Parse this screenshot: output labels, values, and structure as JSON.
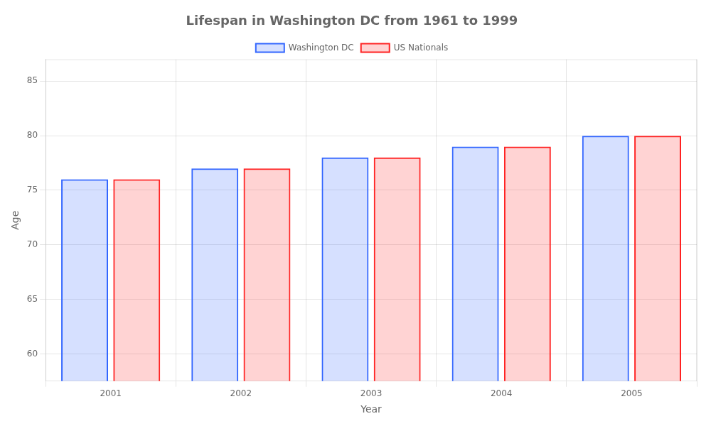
{
  "chart_data": {
    "type": "bar",
    "title": "Lifespan in Washington DC from 1961 to 1999",
    "xlabel": "Year",
    "ylabel": "Age",
    "categories": [
      "2001",
      "2002",
      "2003",
      "2004",
      "2005"
    ],
    "series": [
      {
        "name": "Washington DC",
        "color": "#3366ff",
        "values": [
          76,
          77,
          78,
          79,
          80
        ]
      },
      {
        "name": "US Nationals",
        "color": "#ff2222",
        "values": [
          76,
          77,
          78,
          79,
          80
        ]
      }
    ],
    "ylim": [
      57.5,
      87
    ],
    "yticks": [
      60,
      65,
      70,
      75,
      80,
      85
    ],
    "grid": true,
    "legend": "top"
  }
}
